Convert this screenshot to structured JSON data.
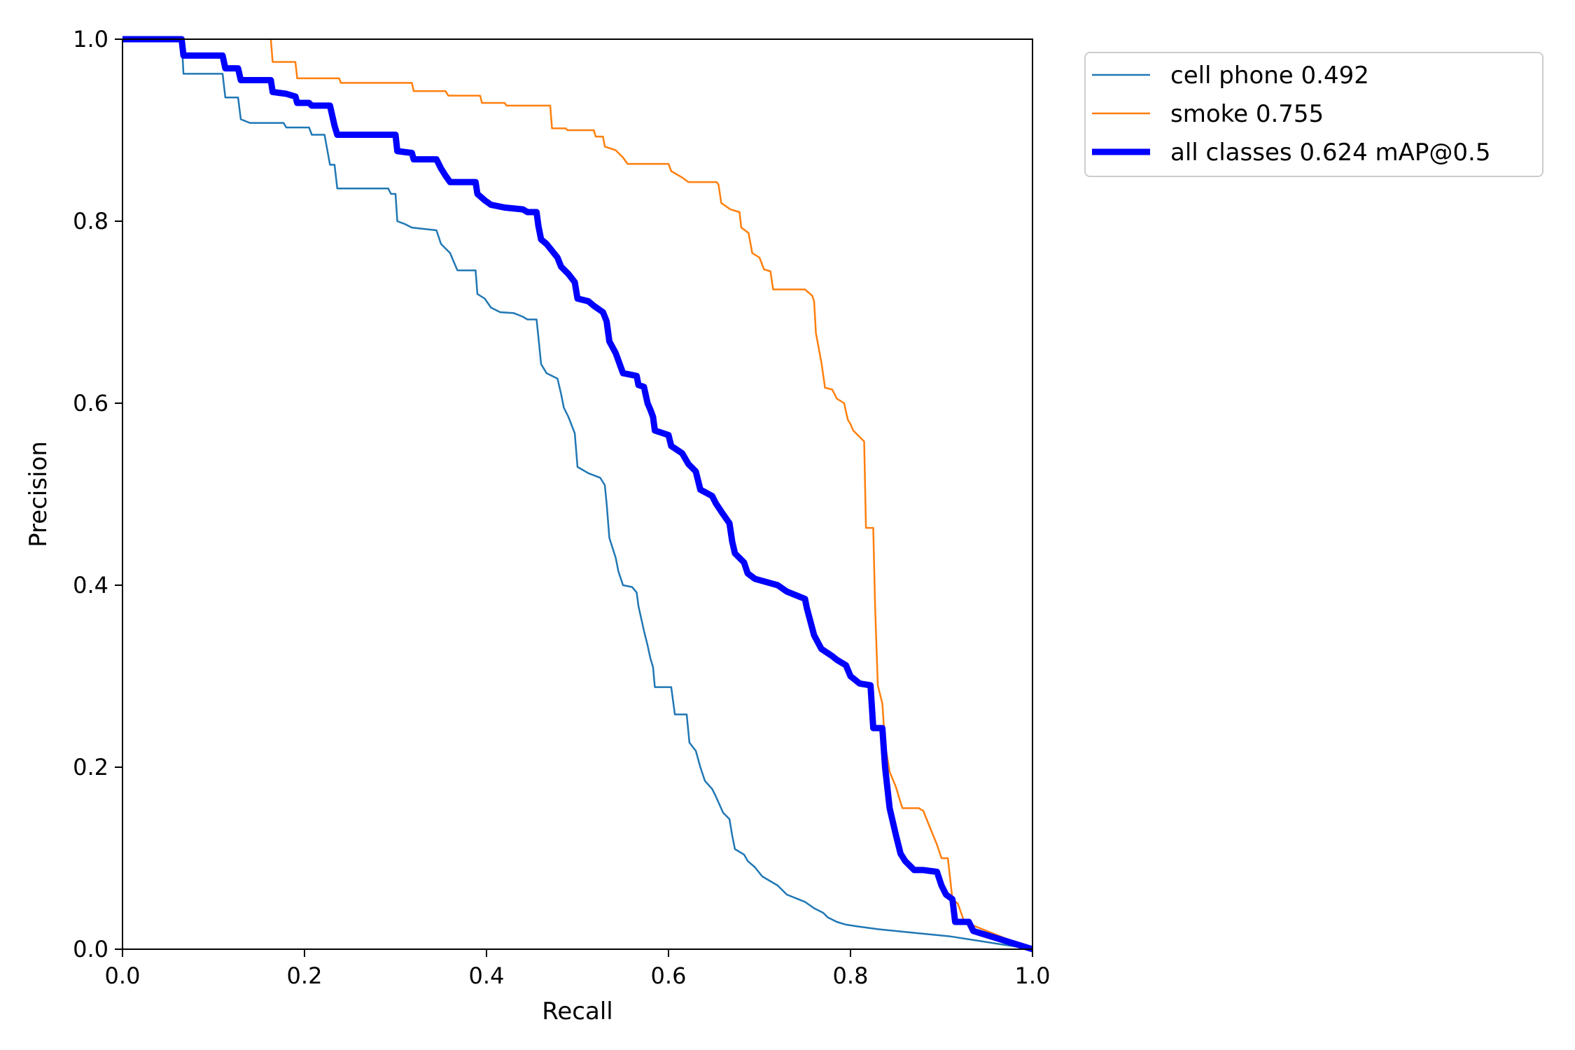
{
  "chart_data": {
    "type": "line",
    "title": "",
    "xlabel": "Recall",
    "ylabel": "Precision",
    "xlim": [
      0.0,
      1.0
    ],
    "ylim": [
      0.0,
      1.0
    ],
    "grid": false,
    "legend_position": "outside-top-right",
    "xticks": [
      "0.0",
      "0.2",
      "0.4",
      "0.6",
      "0.8",
      "1.0"
    ],
    "yticks": [
      "0.0",
      "0.2",
      "0.4",
      "0.6",
      "0.8",
      "1.0"
    ],
    "series": [
      {
        "name": "cell phone 0.492",
        "color": "#1f77b4",
        "style": "thin",
        "points": [
          [
            0.0,
            1.0
          ],
          [
            0.065,
            1.0
          ],
          [
            0.067,
            0.962
          ],
          [
            0.11,
            0.962
          ],
          [
            0.113,
            0.936
          ],
          [
            0.127,
            0.936
          ],
          [
            0.13,
            0.912
          ],
          [
            0.14,
            0.908
          ],
          [
            0.177,
            0.908
          ],
          [
            0.18,
            0.903
          ],
          [
            0.205,
            0.903
          ],
          [
            0.208,
            0.895
          ],
          [
            0.222,
            0.895
          ],
          [
            0.228,
            0.862
          ],
          [
            0.233,
            0.862
          ],
          [
            0.236,
            0.836
          ],
          [
            0.292,
            0.836
          ],
          [
            0.295,
            0.83
          ],
          [
            0.3,
            0.83
          ],
          [
            0.302,
            0.8
          ],
          [
            0.31,
            0.797
          ],
          [
            0.318,
            0.793
          ],
          [
            0.345,
            0.79
          ],
          [
            0.35,
            0.775
          ],
          [
            0.36,
            0.765
          ],
          [
            0.368,
            0.746
          ],
          [
            0.388,
            0.746
          ],
          [
            0.39,
            0.72
          ],
          [
            0.398,
            0.715
          ],
          [
            0.405,
            0.705
          ],
          [
            0.415,
            0.7
          ],
          [
            0.43,
            0.699
          ],
          [
            0.44,
            0.695
          ],
          [
            0.445,
            0.692
          ],
          [
            0.455,
            0.692
          ],
          [
            0.457,
            0.673
          ],
          [
            0.46,
            0.643
          ],
          [
            0.466,
            0.633
          ],
          [
            0.478,
            0.627
          ],
          [
            0.482,
            0.61
          ],
          [
            0.485,
            0.595
          ],
          [
            0.49,
            0.585
          ],
          [
            0.497,
            0.567
          ],
          [
            0.5,
            0.53
          ],
          [
            0.512,
            0.523
          ],
          [
            0.525,
            0.518
          ],
          [
            0.53,
            0.51
          ],
          [
            0.532,
            0.49
          ],
          [
            0.535,
            0.452
          ],
          [
            0.542,
            0.43
          ],
          [
            0.545,
            0.415
          ],
          [
            0.55,
            0.4
          ],
          [
            0.56,
            0.398
          ],
          [
            0.565,
            0.392
          ],
          [
            0.567,
            0.377
          ],
          [
            0.573,
            0.35
          ],
          [
            0.577,
            0.334
          ],
          [
            0.58,
            0.32
          ],
          [
            0.583,
            0.31
          ],
          [
            0.585,
            0.288
          ],
          [
            0.603,
            0.288
          ],
          [
            0.607,
            0.258
          ],
          [
            0.62,
            0.258
          ],
          [
            0.623,
            0.227
          ],
          [
            0.63,
            0.218
          ],
          [
            0.635,
            0.2
          ],
          [
            0.64,
            0.185
          ],
          [
            0.648,
            0.176
          ],
          [
            0.652,
            0.168
          ],
          [
            0.66,
            0.15
          ],
          [
            0.667,
            0.143
          ],
          [
            0.67,
            0.125
          ],
          [
            0.673,
            0.11
          ],
          [
            0.683,
            0.104
          ],
          [
            0.687,
            0.097
          ],
          [
            0.695,
            0.09
          ],
          [
            0.703,
            0.08
          ],
          [
            0.72,
            0.07
          ],
          [
            0.73,
            0.06
          ],
          [
            0.75,
            0.052
          ],
          [
            0.76,
            0.045
          ],
          [
            0.77,
            0.04
          ],
          [
            0.775,
            0.035
          ],
          [
            0.785,
            0.03
          ],
          [
            0.795,
            0.027
          ],
          [
            0.808,
            0.025
          ],
          [
            0.83,
            0.022
          ],
          [
            0.87,
            0.018
          ],
          [
            0.91,
            0.014
          ],
          [
            1.0,
            0.0
          ]
        ]
      },
      {
        "name": "smoke 0.755",
        "color": "#ff7f0e",
        "style": "thin",
        "points": [
          [
            0.163,
            1.0
          ],
          [
            0.165,
            0.975
          ],
          [
            0.19,
            0.975
          ],
          [
            0.192,
            0.957
          ],
          [
            0.238,
            0.957
          ],
          [
            0.24,
            0.952
          ],
          [
            0.318,
            0.952
          ],
          [
            0.32,
            0.943
          ],
          [
            0.355,
            0.943
          ],
          [
            0.358,
            0.938
          ],
          [
            0.393,
            0.938
          ],
          [
            0.395,
            0.93
          ],
          [
            0.42,
            0.93
          ],
          [
            0.422,
            0.927
          ],
          [
            0.47,
            0.927
          ],
          [
            0.472,
            0.902
          ],
          [
            0.487,
            0.902
          ],
          [
            0.489,
            0.9
          ],
          [
            0.518,
            0.9
          ],
          [
            0.52,
            0.893
          ],
          [
            0.528,
            0.893
          ],
          [
            0.53,
            0.882
          ],
          [
            0.542,
            0.878
          ],
          [
            0.55,
            0.87
          ],
          [
            0.555,
            0.863
          ],
          [
            0.6,
            0.863
          ],
          [
            0.603,
            0.855
          ],
          [
            0.615,
            0.848
          ],
          [
            0.622,
            0.843
          ],
          [
            0.653,
            0.843
          ],
          [
            0.655,
            0.84
          ],
          [
            0.658,
            0.82
          ],
          [
            0.668,
            0.813
          ],
          [
            0.678,
            0.81
          ],
          [
            0.68,
            0.793
          ],
          [
            0.688,
            0.787
          ],
          [
            0.692,
            0.765
          ],
          [
            0.7,
            0.76
          ],
          [
            0.705,
            0.747
          ],
          [
            0.712,
            0.745
          ],
          [
            0.715,
            0.725
          ],
          [
            0.75,
            0.725
          ],
          [
            0.758,
            0.718
          ],
          [
            0.76,
            0.712
          ],
          [
            0.762,
            0.677
          ],
          [
            0.768,
            0.645
          ],
          [
            0.772,
            0.617
          ],
          [
            0.78,
            0.615
          ],
          [
            0.785,
            0.605
          ],
          [
            0.793,
            0.6
          ],
          [
            0.797,
            0.582
          ],
          [
            0.8,
            0.577
          ],
          [
            0.803,
            0.57
          ],
          [
            0.81,
            0.563
          ],
          [
            0.815,
            0.558
          ],
          [
            0.817,
            0.463
          ],
          [
            0.825,
            0.463
          ],
          [
            0.827,
            0.378
          ],
          [
            0.83,
            0.29
          ],
          [
            0.835,
            0.27
          ],
          [
            0.838,
            0.225
          ],
          [
            0.843,
            0.195
          ],
          [
            0.85,
            0.178
          ],
          [
            0.853,
            0.168
          ],
          [
            0.857,
            0.155
          ],
          [
            0.875,
            0.155
          ],
          [
            0.88,
            0.152
          ],
          [
            0.888,
            0.132
          ],
          [
            0.895,
            0.115
          ],
          [
            0.9,
            0.1
          ],
          [
            0.907,
            0.1
          ],
          [
            0.912,
            0.055
          ],
          [
            0.918,
            0.05
          ],
          [
            0.925,
            0.03
          ],
          [
            1.0,
            0.0
          ]
        ]
      },
      {
        "name": "all classes 0.624 mAP@0.5",
        "color": "#0000ff",
        "style": "thick",
        "points": [
          [
            0.0,
            1.0
          ],
          [
            0.065,
            1.0
          ],
          [
            0.067,
            0.982
          ],
          [
            0.11,
            0.982
          ],
          [
            0.113,
            0.968
          ],
          [
            0.127,
            0.968
          ],
          [
            0.13,
            0.955
          ],
          [
            0.163,
            0.955
          ],
          [
            0.165,
            0.942
          ],
          [
            0.18,
            0.94
          ],
          [
            0.19,
            0.937
          ],
          [
            0.192,
            0.93
          ],
          [
            0.205,
            0.93
          ],
          [
            0.208,
            0.927
          ],
          [
            0.228,
            0.927
          ],
          [
            0.233,
            0.905
          ],
          [
            0.236,
            0.895
          ],
          [
            0.3,
            0.895
          ],
          [
            0.302,
            0.877
          ],
          [
            0.318,
            0.875
          ],
          [
            0.32,
            0.868
          ],
          [
            0.345,
            0.868
          ],
          [
            0.35,
            0.858
          ],
          [
            0.355,
            0.85
          ],
          [
            0.36,
            0.843
          ],
          [
            0.388,
            0.843
          ],
          [
            0.39,
            0.83
          ],
          [
            0.398,
            0.823
          ],
          [
            0.405,
            0.818
          ],
          [
            0.42,
            0.815
          ],
          [
            0.44,
            0.813
          ],
          [
            0.445,
            0.81
          ],
          [
            0.455,
            0.81
          ],
          [
            0.457,
            0.795
          ],
          [
            0.46,
            0.78
          ],
          [
            0.466,
            0.775
          ],
          [
            0.47,
            0.77
          ],
          [
            0.478,
            0.76
          ],
          [
            0.482,
            0.75
          ],
          [
            0.49,
            0.742
          ],
          [
            0.497,
            0.733
          ],
          [
            0.5,
            0.715
          ],
          [
            0.512,
            0.712
          ],
          [
            0.518,
            0.707
          ],
          [
            0.528,
            0.7
          ],
          [
            0.532,
            0.69
          ],
          [
            0.535,
            0.668
          ],
          [
            0.542,
            0.655
          ],
          [
            0.55,
            0.633
          ],
          [
            0.565,
            0.63
          ],
          [
            0.567,
            0.62
          ],
          [
            0.573,
            0.618
          ],
          [
            0.577,
            0.6
          ],
          [
            0.58,
            0.593
          ],
          [
            0.583,
            0.585
          ],
          [
            0.585,
            0.57
          ],
          [
            0.6,
            0.565
          ],
          [
            0.603,
            0.553
          ],
          [
            0.615,
            0.545
          ],
          [
            0.622,
            0.533
          ],
          [
            0.63,
            0.525
          ],
          [
            0.635,
            0.505
          ],
          [
            0.648,
            0.498
          ],
          [
            0.652,
            0.49
          ],
          [
            0.66,
            0.478
          ],
          [
            0.667,
            0.468
          ],
          [
            0.67,
            0.448
          ],
          [
            0.673,
            0.435
          ],
          [
            0.683,
            0.425
          ],
          [
            0.687,
            0.413
          ],
          [
            0.695,
            0.407
          ],
          [
            0.72,
            0.4
          ],
          [
            0.73,
            0.393
          ],
          [
            0.75,
            0.385
          ],
          [
            0.752,
            0.375
          ],
          [
            0.76,
            0.345
          ],
          [
            0.768,
            0.33
          ],
          [
            0.78,
            0.322
          ],
          [
            0.785,
            0.318
          ],
          [
            0.795,
            0.312
          ],
          [
            0.8,
            0.3
          ],
          [
            0.81,
            0.292
          ],
          [
            0.822,
            0.29
          ],
          [
            0.825,
            0.243
          ],
          [
            0.835,
            0.243
          ],
          [
            0.838,
            0.2
          ],
          [
            0.843,
            0.155
          ],
          [
            0.85,
            0.125
          ],
          [
            0.855,
            0.105
          ],
          [
            0.86,
            0.097
          ],
          [
            0.87,
            0.087
          ],
          [
            0.88,
            0.087
          ],
          [
            0.895,
            0.085
          ],
          [
            0.9,
            0.07
          ],
          [
            0.905,
            0.06
          ],
          [
            0.912,
            0.055
          ],
          [
            0.915,
            0.03
          ],
          [
            0.93,
            0.03
          ],
          [
            0.935,
            0.02
          ],
          [
            1.0,
            0.0
          ]
        ]
      }
    ]
  }
}
